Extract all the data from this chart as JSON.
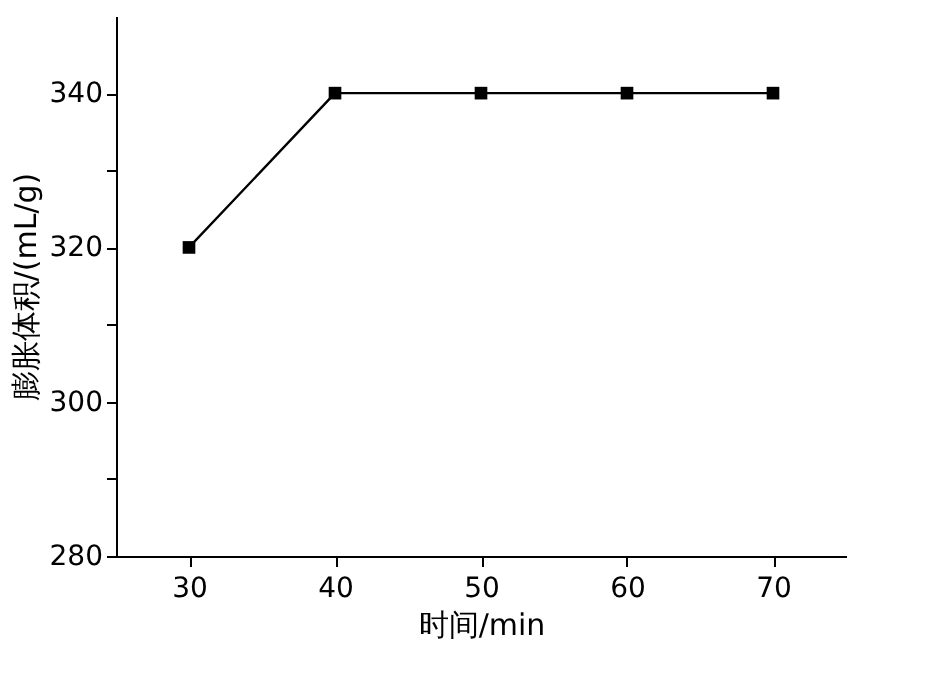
{
  "chart_data": {
    "type": "line",
    "xlabel": "时间/min",
    "ylabel": "膨胀体积/(mL/g)",
    "x": [
      30,
      40,
      50,
      60,
      70
    ],
    "series": [
      {
        "color": "#000000",
        "values": [
          320,
          340,
          340,
          340,
          340
        ]
      }
    ],
    "xlim": [
      25,
      75
    ],
    "xticks": [
      30,
      40,
      50,
      60,
      70
    ],
    "ylim": [
      280,
      350
    ],
    "yticks": [
      280,
      {
        "value": 290,
        "label": null
      },
      300,
      {
        "value": 310,
        "label": null
      },
      320,
      {
        "value": 330,
        "label": null
      },
      340
    ],
    "marker": "square",
    "line_style": "solid",
    "grid": false
  }
}
